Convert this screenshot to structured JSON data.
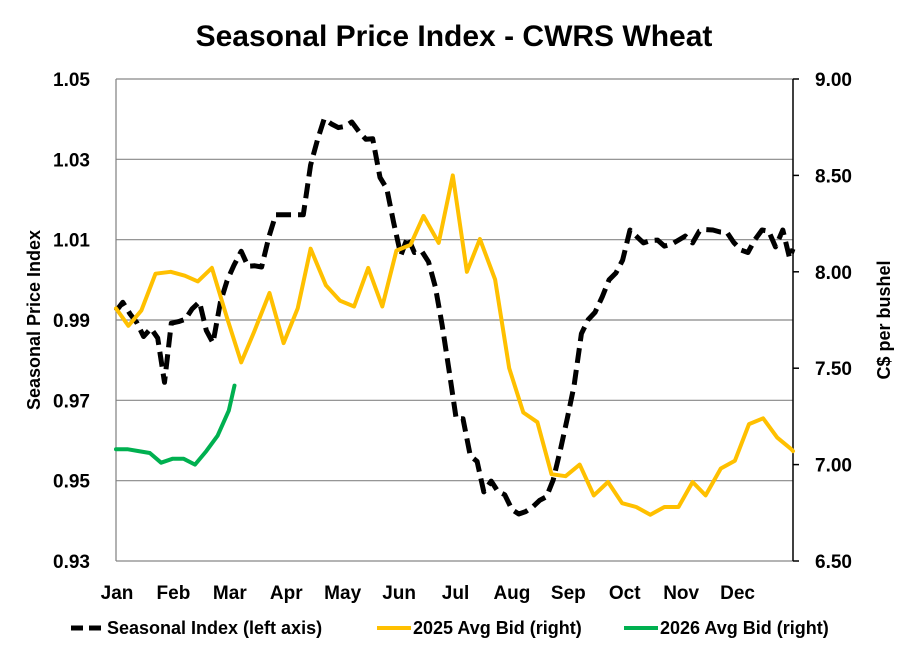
{
  "chart_data": {
    "type": "line",
    "title": "Seasonal Price Index - CWRS Wheat",
    "xlabel": "",
    "ylabel_left": "Seasonal Price Index",
    "ylabel_right": "C$ per bushel",
    "ylim_left": [
      0.93,
      1.05
    ],
    "ylim_right": [
      6.5,
      9.0
    ],
    "yticks_left": [
      "0.93",
      "0.95",
      "0.97",
      "0.99",
      "1.01",
      "1.03",
      "1.05"
    ],
    "yticks_right": [
      "6.50",
      "7.00",
      "7.50",
      "8.00",
      "8.50",
      "9.00"
    ],
    "categories": [
      "Jan",
      "Feb",
      "Mar",
      "Apr",
      "May",
      "Jun",
      "Jul",
      "Aug",
      "Sep",
      "Oct",
      "Nov",
      "Dec"
    ],
    "x_range": [
      0,
      12
    ],
    "series": [
      {
        "name": "Seasonal Index (left axis)",
        "axis": "left",
        "color": "#000000",
        "dash": true,
        "x": [
          0.0,
          0.12,
          0.25,
          0.37,
          0.49,
          0.62,
          0.74,
          0.86,
          0.98,
          1.11,
          1.23,
          1.35,
          1.48,
          1.6,
          1.72,
          1.85,
          1.97,
          2.09,
          2.22,
          2.34,
          2.46,
          2.58,
          2.71,
          2.83,
          2.95,
          3.08,
          3.2,
          3.32,
          3.45,
          3.57,
          3.69,
          3.82,
          3.94,
          4.06,
          4.18,
          4.31,
          4.43,
          4.55,
          4.68,
          4.8,
          4.92,
          5.05,
          5.17,
          5.29,
          5.42,
          5.54,
          5.66,
          5.78,
          5.91,
          6.03,
          6.15,
          6.28,
          6.4,
          6.52,
          6.65,
          6.77,
          6.89,
          7.02,
          7.14,
          7.26,
          7.38,
          7.51,
          7.63,
          7.75,
          7.88,
          8.0,
          8.12,
          8.25,
          8.37,
          8.49,
          8.62,
          8.74,
          8.86,
          8.98,
          9.11,
          9.23,
          9.35,
          9.48,
          9.6,
          9.72,
          9.85,
          9.97,
          10.09,
          10.22,
          10.34,
          10.46,
          10.58,
          10.71,
          10.83,
          10.95,
          11.08,
          11.2,
          11.32,
          11.45,
          11.57,
          11.69,
          11.82,
          11.94,
          12.0
        ],
        "values": [
          0.9922,
          0.9944,
          0.9915,
          0.9893,
          0.9859,
          0.9879,
          0.9855,
          0.9745,
          0.9892,
          0.9896,
          0.9902,
          0.9928,
          0.9945,
          0.9874,
          0.9843,
          0.9944,
          0.9998,
          1.0036,
          1.0071,
          1.0034,
          1.0035,
          1.0032,
          1.0107,
          1.0162,
          1.0162,
          1.0162,
          1.0162,
          1.0162,
          1.0286,
          1.0348,
          1.0401,
          1.0388,
          1.0379,
          1.0382,
          1.0393,
          1.0368,
          1.035,
          1.0351,
          1.0255,
          1.0227,
          1.0143,
          1.0061,
          1.0107,
          1.0068,
          1.0071,
          1.0045,
          0.9983,
          0.9888,
          0.9769,
          0.9654,
          0.9654,
          0.9562,
          0.9548,
          0.9472,
          0.9499,
          0.9473,
          0.9465,
          0.9428,
          0.9417,
          0.9423,
          0.9434,
          0.9451,
          0.946,
          0.9502,
          0.9579,
          0.9655,
          0.9737,
          0.9866,
          0.9901,
          0.9919,
          0.9958,
          1.0,
          1.0017,
          1.0049,
          1.0124,
          1.0108,
          1.0092,
          1.0098,
          1.0099,
          1.0084,
          1.0089,
          1.0099,
          1.0109,
          1.0092,
          1.0121,
          1.0125,
          1.0124,
          1.0119,
          1.0118,
          1.0093,
          1.0074,
          1.0068,
          1.0099,
          1.0124,
          1.0121,
          1.0082,
          1.0124,
          1.0054,
          1.0077
        ]
      },
      {
        "name": "2025 Avg Bid (right)",
        "axis": "right",
        "color": "#FFC000",
        "dash": false,
        "x": [
          0.0,
          0.22,
          0.45,
          0.7,
          0.97,
          1.22,
          1.45,
          1.7,
          1.97,
          2.22,
          2.45,
          2.72,
          2.97,
          3.22,
          3.45,
          3.72,
          3.97,
          4.22,
          4.47,
          4.72,
          4.97,
          5.22,
          5.45,
          5.72,
          5.97,
          6.22,
          6.45,
          6.72,
          6.97,
          7.22,
          7.47,
          7.72,
          7.97,
          8.22,
          8.47,
          8.72,
          8.97,
          9.22,
          9.47,
          9.72,
          9.97,
          10.22,
          10.45,
          10.72,
          10.97,
          11.22,
          11.47,
          11.72,
          11.97,
          12.0
        ],
        "values": [
          7.81,
          7.72,
          7.8,
          7.99,
          8.0,
          7.98,
          7.95,
          8.02,
          7.76,
          7.53,
          7.69,
          7.89,
          7.63,
          7.81,
          8.12,
          7.93,
          7.85,
          7.82,
          8.02,
          7.82,
          8.11,
          8.14,
          8.29,
          8.15,
          8.5,
          8.0,
          8.17,
          7.96,
          7.5,
          7.27,
          7.22,
          6.95,
          6.94,
          7.0,
          6.84,
          6.91,
          6.8,
          6.78,
          6.74,
          6.78,
          6.78,
          6.91,
          6.84,
          6.98,
          7.02,
          7.21,
          7.24,
          7.14,
          7.08,
          7.07
        ]
      },
      {
        "name": "2026 Avg Bid (right)",
        "axis": "right",
        "color": "#00B050",
        "dash": false,
        "x": [
          0.0,
          0.2,
          0.4,
          0.6,
          0.8,
          1.0,
          1.2,
          1.4,
          1.6,
          1.8,
          2.0,
          2.1
        ],
        "values": [
          7.08,
          7.08,
          7.07,
          7.06,
          7.01,
          7.03,
          7.03,
          7.0,
          7.07,
          7.15,
          7.28,
          7.41
        ]
      }
    ],
    "legend_position": "bottom",
    "grid": "horizontal"
  }
}
